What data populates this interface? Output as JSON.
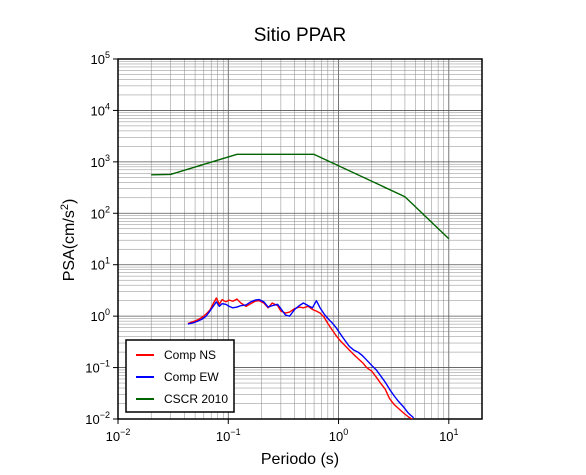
{
  "chart_data": {
    "type": "line",
    "title": "Sitio PPAR",
    "xlabel": "Periodo (s)",
    "ylabel": {
      "prefix": "PSA(cm/s",
      "sup": "2",
      "suffix": ")"
    },
    "xscale": "log",
    "yscale": "log",
    "xlim": [
      0.01,
      20
    ],
    "ylim": [
      0.01,
      100000
    ],
    "grid": true,
    "legend_position": "bottom-left",
    "x_ticks": [
      {
        "value": 0.01,
        "base": "10",
        "exp": "−2"
      },
      {
        "value": 0.1,
        "base": "10",
        "exp": "−1"
      },
      {
        "value": 1,
        "base": "10",
        "exp": "0"
      },
      {
        "value": 10,
        "base": "10",
        "exp": "1"
      }
    ],
    "y_ticks": [
      {
        "value": 0.01,
        "base": "10",
        "exp": "−2"
      },
      {
        "value": 0.1,
        "base": "10",
        "exp": "−1"
      },
      {
        "value": 1,
        "base": "10",
        "exp": "0"
      },
      {
        "value": 10,
        "base": "10",
        "exp": "1"
      },
      {
        "value": 100,
        "base": "10",
        "exp": "2"
      },
      {
        "value": 1000,
        "base": "10",
        "exp": "3"
      },
      {
        "value": 10000,
        "base": "10",
        "exp": "4"
      },
      {
        "value": 100000,
        "base": "10",
        "exp": "5"
      }
    ],
    "series": [
      {
        "name": "Comp NS",
        "color": "#ff0000",
        "x": [
          0.043,
          0.048,
          0.053,
          0.058,
          0.063,
          0.068,
          0.073,
          0.078,
          0.083,
          0.088,
          0.095,
          0.102,
          0.11,
          0.12,
          0.13,
          0.145,
          0.16,
          0.175,
          0.19,
          0.21,
          0.23,
          0.25,
          0.28,
          0.3,
          0.33,
          0.36,
          0.4,
          0.44,
          0.48,
          0.53,
          0.58,
          0.63,
          0.68,
          0.74,
          0.8,
          0.87,
          0.95,
          1.04,
          1.14,
          1.25,
          1.37,
          1.5,
          1.65,
          1.8,
          2.0,
          2.2,
          2.4,
          2.65,
          2.9,
          3.2,
          3.5,
          3.9,
          4.3,
          4.8
        ],
        "y": [
          0.72,
          0.78,
          0.85,
          0.95,
          1.1,
          1.3,
          1.75,
          2.25,
          1.7,
          2.1,
          1.9,
          2.05,
          1.95,
          2.15,
          1.8,
          1.55,
          1.75,
          1.95,
          2.0,
          1.8,
          1.45,
          1.8,
          1.6,
          1.25,
          1.15,
          1.2,
          1.4,
          1.5,
          1.45,
          1.55,
          1.35,
          1.25,
          1.15,
          0.95,
          0.72,
          0.55,
          0.42,
          0.33,
          0.27,
          0.22,
          0.18,
          0.15,
          0.125,
          0.1,
          0.085,
          0.065,
          0.05,
          0.038,
          0.025,
          0.019,
          0.016,
          0.013,
          0.011,
          0.0095
        ]
      },
      {
        "name": "Comp EW",
        "color": "#0000ff",
        "x": [
          0.043,
          0.048,
          0.053,
          0.058,
          0.063,
          0.068,
          0.073,
          0.078,
          0.083,
          0.088,
          0.095,
          0.102,
          0.11,
          0.12,
          0.13,
          0.145,
          0.16,
          0.175,
          0.19,
          0.21,
          0.23,
          0.25,
          0.28,
          0.3,
          0.33,
          0.36,
          0.4,
          0.44,
          0.48,
          0.53,
          0.58,
          0.63,
          0.68,
          0.74,
          0.8,
          0.87,
          0.95,
          1.04,
          1.14,
          1.25,
          1.37,
          1.5,
          1.65,
          1.8,
          2.0,
          2.2,
          2.4,
          2.65,
          2.9,
          3.2,
          3.5,
          3.9,
          4.3,
          4.8
        ],
        "y": [
          0.7,
          0.74,
          0.8,
          0.88,
          1.0,
          1.25,
          1.55,
          1.9,
          1.55,
          1.75,
          1.7,
          1.55,
          1.45,
          1.5,
          1.6,
          1.65,
          1.9,
          2.05,
          2.1,
          1.9,
          1.5,
          1.6,
          1.7,
          1.4,
          1.05,
          1.0,
          1.35,
          1.6,
          1.8,
          1.6,
          1.45,
          2.0,
          1.45,
          1.1,
          0.9,
          0.75,
          0.6,
          0.45,
          0.34,
          0.26,
          0.22,
          0.2,
          0.17,
          0.14,
          0.11,
          0.09,
          0.07,
          0.052,
          0.038,
          0.028,
          0.022,
          0.017,
          0.013,
          0.0105
        ]
      },
      {
        "name": "CSCR 2010",
        "color": "#006400",
        "x": [
          0.02,
          0.03,
          0.12,
          0.6,
          4.0,
          10.0
        ],
        "y": [
          560,
          570,
          1400,
          1400,
          210,
          32
        ]
      }
    ]
  }
}
